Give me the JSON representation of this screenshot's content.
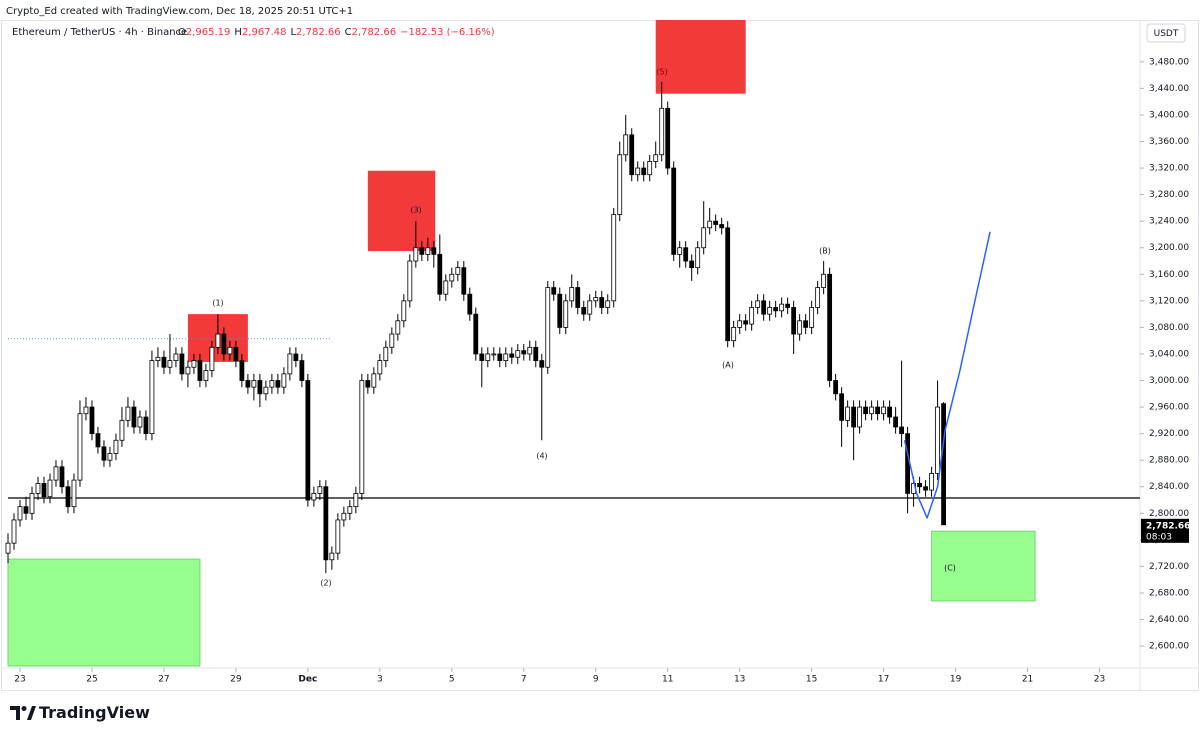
{
  "chart_data": {
    "type": "candlestick",
    "credit": "Crypto_Ed created with TradingView.com, Dec 18, 2025 20:51 UTC+1",
    "title": "Ethereum / TetherUS · 4h · Binance",
    "legend_values": [
      "O",
      "2,965.19",
      "H",
      "2,967.48",
      "L",
      "2,782.66",
      "C",
      "2,782.66",
      "−182.53 (−6.16%)"
    ],
    "currency": "USDT",
    "brand": "TradingView",
    "last_price_label": "2,782.66",
    "countdown": "08:03",
    "xlim": [
      -8,
      747
    ],
    "ylim": [
      2567,
      3543
    ],
    "xticks": [
      {
        "value": 0,
        "label": "23"
      },
      {
        "value": 48,
        "label": "25"
      },
      {
        "value": 96,
        "label": "27"
      },
      {
        "value": 144,
        "label": "29"
      },
      {
        "value": 192,
        "label": "Dec"
      },
      {
        "value": 240,
        "label": "3"
      },
      {
        "value": 288,
        "label": "5"
      },
      {
        "value": 336,
        "label": "7"
      },
      {
        "value": 384,
        "label": "9"
      },
      {
        "value": 432,
        "label": "11"
      },
      {
        "value": 480,
        "label": "13"
      },
      {
        "value": 528,
        "label": "15"
      },
      {
        "value": 576,
        "label": "17"
      },
      {
        "value": 624,
        "label": "19"
      },
      {
        "value": 672,
        "label": "21"
      },
      {
        "value": 720,
        "label": "23"
      }
    ],
    "yticks": [
      {
        "value": 2600,
        "label": "2,600.00"
      },
      {
        "value": 2640,
        "label": "2,640.00"
      },
      {
        "value": 2680,
        "label": "2,680.00"
      },
      {
        "value": 2720,
        "label": "2,720.00"
      },
      {
        "value": 2760,
        "label": "2,760.00"
      },
      {
        "value": 2800,
        "label": "2,800.00"
      },
      {
        "value": 2840,
        "label": "2,840.00"
      },
      {
        "value": 2880,
        "label": "2,880.00"
      },
      {
        "value": 2920,
        "label": "2,920.00"
      },
      {
        "value": 2960,
        "label": "2,960.00"
      },
      {
        "value": 3000,
        "label": "3,000.00"
      },
      {
        "value": 3040,
        "label": "3,040.00"
      },
      {
        "value": 3080,
        "label": "3,080.00"
      },
      {
        "value": 3120,
        "label": "3,120.00"
      },
      {
        "value": 3160,
        "label": "3,160.00"
      },
      {
        "value": 3200,
        "label": "3,200.00"
      },
      {
        "value": 3240,
        "label": "3,240.00"
      },
      {
        "value": 3280,
        "label": "3,280.00"
      },
      {
        "value": 3320,
        "label": "3,320.00"
      },
      {
        "value": 3360,
        "label": "3,360.00"
      },
      {
        "value": 3400,
        "label": "3,400.00"
      },
      {
        "value": 3440,
        "label": "3,440.00"
      },
      {
        "value": 3480,
        "label": "3,480.00"
      }
    ],
    "x": [
      -8,
      -4,
      0,
      4,
      8,
      12,
      16,
      20,
      24,
      28,
      32,
      36,
      40,
      44,
      48,
      52,
      56,
      60,
      64,
      68,
      72,
      76,
      80,
      84,
      88,
      92,
      96,
      100,
      104,
      108,
      112,
      116,
      120,
      124,
      128,
      132,
      136,
      140,
      144,
      148,
      152,
      156,
      160,
      164,
      168,
      172,
      176,
      180,
      184,
      188,
      192,
      196,
      200,
      204,
      208,
      212,
      216,
      220,
      224,
      228,
      232,
      236,
      240,
      244,
      248,
      252,
      256,
      260,
      264,
      268,
      272,
      276,
      280,
      284,
      288,
      292,
      296,
      300,
      304,
      308,
      312,
      316,
      320,
      324,
      328,
      332,
      336,
      340,
      344,
      348,
      352,
      356,
      360,
      364,
      368,
      372,
      376,
      380,
      384,
      388,
      392,
      396,
      400,
      404,
      408,
      412,
      416,
      420,
      424,
      428,
      432,
      436,
      440,
      444,
      448,
      452,
      456,
      460,
      464,
      468,
      472,
      476,
      480,
      484,
      488,
      492,
      496,
      500,
      504,
      508,
      512,
      516,
      520,
      524,
      528,
      532,
      536,
      540,
      544,
      548,
      552,
      556,
      560,
      564,
      568,
      572,
      576,
      580,
      584,
      588,
      592,
      596,
      600,
      604,
      608,
      612,
      616
    ],
    "ohlc": [
      [
        2740,
        2770,
        2725,
        2755
      ],
      [
        2755,
        2800,
        2745,
        2790
      ],
      [
        2790,
        2820,
        2780,
        2810
      ],
      [
        2810,
        2825,
        2790,
        2800
      ],
      [
        2800,
        2840,
        2790,
        2830
      ],
      [
        2830,
        2855,
        2820,
        2845
      ],
      [
        2845,
        2855,
        2815,
        2825
      ],
      [
        2825,
        2860,
        2815,
        2850
      ],
      [
        2850,
        2880,
        2840,
        2870
      ],
      [
        2870,
        2880,
        2830,
        2840
      ],
      [
        2840,
        2850,
        2800,
        2810
      ],
      [
        2810,
        2860,
        2800,
        2850
      ],
      [
        2850,
        2970,
        2840,
        2950
      ],
      [
        2950,
        2975,
        2940,
        2960
      ],
      [
        2960,
        2970,
        2910,
        2920
      ],
      [
        2920,
        2930,
        2890,
        2900
      ],
      [
        2900,
        2910,
        2870,
        2880
      ],
      [
        2880,
        2900,
        2870,
        2890
      ],
      [
        2890,
        2920,
        2880,
        2910
      ],
      [
        2910,
        2960,
        2900,
        2940
      ],
      [
        2940,
        2975,
        2930,
        2960
      ],
      [
        2960,
        2970,
        2920,
        2930
      ],
      [
        2930,
        2955,
        2920,
        2945
      ],
      [
        2945,
        2955,
        2910,
        2920
      ],
      [
        2920,
        3045,
        2910,
        3030
      ],
      [
        3030,
        3050,
        3020,
        3035
      ],
      [
        3035,
        3045,
        3010,
        3020
      ],
      [
        3020,
        3070,
        3010,
        3030
      ],
      [
        3030,
        3050,
        3020,
        3040
      ],
      [
        3040,
        3050,
        3000,
        3010
      ],
      [
        3010,
        3030,
        2990,
        3020
      ],
      [
        3020,
        3040,
        3010,
        3030
      ],
      [
        3030,
        3040,
        2990,
        3000
      ],
      [
        3000,
        3025,
        2990,
        3015
      ],
      [
        3015,
        3060,
        3005,
        3050
      ],
      [
        3050,
        3100,
        3040,
        3070
      ],
      [
        3070,
        3080,
        3030,
        3040
      ],
      [
        3040,
        3060,
        3030,
        3050
      ],
      [
        3050,
        3060,
        3020,
        3030
      ],
      [
        3030,
        3040,
        2990,
        3000
      ],
      [
        3000,
        3010,
        2980,
        2990
      ],
      [
        2990,
        3010,
        2970,
        3000
      ],
      [
        3000,
        3010,
        2960,
        2980
      ],
      [
        2980,
        3000,
        2970,
        2990
      ],
      [
        2990,
        3010,
        2980,
        3000
      ],
      [
        3000,
        3010,
        2980,
        2990
      ],
      [
        2990,
        3020,
        2980,
        3010
      ],
      [
        3010,
        3050,
        3000,
        3040
      ],
      [
        3040,
        3050,
        3020,
        3030
      ],
      [
        3030,
        3040,
        2990,
        3000
      ],
      [
        3000,
        3010,
        2810,
        2820
      ],
      [
        2820,
        2840,
        2810,
        2830
      ],
      [
        2830,
        2850,
        2820,
        2840
      ],
      [
        2840,
        2850,
        2710,
        2730
      ],
      [
        2730,
        2750,
        2715,
        2740
      ],
      [
        2740,
        2800,
        2730,
        2790
      ],
      [
        2790,
        2810,
        2780,
        2800
      ],
      [
        2800,
        2820,
        2790,
        2810
      ],
      [
        2810,
        2840,
        2800,
        2830
      ],
      [
        2830,
        3010,
        2820,
        3000
      ],
      [
        3000,
        3010,
        2980,
        2990
      ],
      [
        2990,
        3020,
        2980,
        3010
      ],
      [
        3010,
        3040,
        3000,
        3030
      ],
      [
        3030,
        3060,
        3020,
        3050
      ],
      [
        3050,
        3080,
        3040,
        3070
      ],
      [
        3070,
        3100,
        3060,
        3090
      ],
      [
        3090,
        3130,
        3080,
        3120
      ],
      [
        3120,
        3190,
        3110,
        3180
      ],
      [
        3180,
        3240,
        3170,
        3200
      ],
      [
        3200,
        3210,
        3180,
        3190
      ],
      [
        3190,
        3215,
        3180,
        3200
      ],
      [
        3200,
        3210,
        3170,
        3190
      ],
      [
        3190,
        3220,
        3120,
        3130
      ],
      [
        3130,
        3160,
        3120,
        3150
      ],
      [
        3150,
        3170,
        3140,
        3160
      ],
      [
        3160,
        3180,
        3150,
        3170
      ],
      [
        3170,
        3180,
        3120,
        3130
      ],
      [
        3130,
        3140,
        3090,
        3100
      ],
      [
        3100,
        3110,
        3030,
        3040
      ],
      [
        3040,
        3050,
        2990,
        3030
      ],
      [
        3030,
        3050,
        3020,
        3040
      ],
      [
        3040,
        3050,
        3030,
        3040
      ],
      [
        3040,
        3050,
        3020,
        3030
      ],
      [
        3030,
        3050,
        3020,
        3040
      ],
      [
        3040,
        3050,
        3025,
        3035
      ],
      [
        3035,
        3055,
        3025,
        3045
      ],
      [
        3045,
        3055,
        3030,
        3040
      ],
      [
        3040,
        3060,
        3030,
        3050
      ],
      [
        3050,
        3060,
        3020,
        3030
      ],
      [
        3030,
        3040,
        2910,
        3020
      ],
      [
        3020,
        3150,
        3010,
        3140
      ],
      [
        3140,
        3150,
        3120,
        3130
      ],
      [
        3130,
        3140,
        3070,
        3080
      ],
      [
        3080,
        3130,
        3070,
        3120
      ],
      [
        3120,
        3160,
        3110,
        3140
      ],
      [
        3140,
        3150,
        3100,
        3110
      ],
      [
        3110,
        3120,
        3090,
        3100
      ],
      [
        3100,
        3130,
        3090,
        3120
      ],
      [
        3120,
        3135,
        3110,
        3125
      ],
      [
        3125,
        3135,
        3100,
        3110
      ],
      [
        3110,
        3130,
        3100,
        3120
      ],
      [
        3120,
        3260,
        3110,
        3250
      ],
      [
        3250,
        3360,
        3240,
        3340
      ],
      [
        3340,
        3400,
        3330,
        3370
      ],
      [
        3370,
        3380,
        3300,
        3310
      ],
      [
        3310,
        3330,
        3300,
        3320
      ],
      [
        3320,
        3330,
        3300,
        3310
      ],
      [
        3310,
        3340,
        3300,
        3330
      ],
      [
        3330,
        3360,
        3320,
        3340
      ],
      [
        3340,
        3450,
        3330,
        3410
      ],
      [
        3410,
        3420,
        3310,
        3320
      ],
      [
        3320,
        3330,
        3180,
        3190
      ],
      [
        3190,
        3210,
        3170,
        3200
      ],
      [
        3200,
        3210,
        3170,
        3180
      ],
      [
        3180,
        3190,
        3150,
        3170
      ],
      [
        3170,
        3210,
        3160,
        3200
      ],
      [
        3200,
        3270,
        3190,
        3230
      ],
      [
        3230,
        3260,
        3220,
        3240
      ],
      [
        3240,
        3250,
        3225,
        3235
      ],
      [
        3235,
        3245,
        3220,
        3230
      ],
      [
        3230,
        3240,
        3050,
        3060
      ],
      [
        3060,
        3090,
        3050,
        3080
      ],
      [
        3080,
        3100,
        3070,
        3090
      ],
      [
        3090,
        3100,
        3075,
        3085
      ],
      [
        3085,
        3120,
        3075,
        3110
      ],
      [
        3110,
        3130,
        3100,
        3120
      ],
      [
        3120,
        3130,
        3090,
        3100
      ],
      [
        3100,
        3120,
        3090,
        3110
      ],
      [
        3110,
        3120,
        3095,
        3105
      ],
      [
        3105,
        3125,
        3095,
        3115
      ],
      [
        3115,
        3125,
        3100,
        3110
      ],
      [
        3110,
        3120,
        3040,
        3070
      ],
      [
        3070,
        3100,
        3060,
        3090
      ],
      [
        3090,
        3100,
        3070,
        3080
      ],
      [
        3080,
        3120,
        3070,
        3110
      ],
      [
        3110,
        3150,
        3100,
        3140
      ],
      [
        3140,
        3180,
        3130,
        3160
      ],
      [
        3160,
        3170,
        2990,
        3000
      ],
      [
        3000,
        3010,
        2970,
        2980
      ],
      [
        2980,
        2990,
        2900,
        2940
      ],
      [
        2940,
        2970,
        2930,
        2960
      ],
      [
        2960,
        2970,
        2880,
        2930
      ],
      [
        2930,
        2970,
        2920,
        2960
      ],
      [
        2960,
        2970,
        2940,
        2950
      ],
      [
        2950,
        2970,
        2940,
        2960
      ],
      [
        2960,
        2970,
        2940,
        2950
      ],
      [
        2950,
        2970,
        2940,
        2960
      ],
      [
        2960,
        2970,
        2935,
        2945
      ],
      [
        2945,
        2960,
        2920,
        2930
      ],
      [
        2930,
        3030,
        2900,
        2920
      ],
      [
        2920,
        2930,
        2800,
        2830
      ],
      [
        2830,
        2855,
        2810,
        2845
      ],
      [
        2845,
        2855,
        2830,
        2840
      ],
      [
        2840,
        2850,
        2825,
        2835
      ],
      [
        2835,
        2870,
        2825,
        2860
      ],
      [
        2860,
        3000,
        2850,
        2960
      ],
      [
        2965.19,
        2967.48,
        2782.66,
        2782.66
      ]
    ],
    "zones": [
      {
        "x": [
          112,
          152
        ],
        "values": [
          3028,
          3100
        ],
        "color": "#f23a3a"
      },
      {
        "x": [
          232,
          277
        ],
        "values": [
          3195,
          3316
        ],
        "color": "#f23a3a"
      },
      {
        "x": [
          424,
          484
        ],
        "values": [
          3432,
          3543
        ],
        "color": "#f23a3a"
      },
      {
        "x": [
          -8,
          120
        ],
        "values": [
          2570,
          2731
        ],
        "color": "#98fd8f"
      },
      {
        "x": [
          608,
          677
        ],
        "values": [
          2668,
          2773
        ],
        "color": "#98fd8f"
      }
    ],
    "hline": {
      "value": 2823,
      "color": "#000000"
    },
    "dotted_line": {
      "x": [
        -8,
        208
      ],
      "value": 3063,
      "color": "#5b8bd6"
    },
    "projection": {
      "x": [
        590,
        598,
        605,
        612,
        617,
        627,
        637,
        647
      ],
      "values": [
        2910,
        2830,
        2793,
        2840,
        2925,
        3016,
        3121,
        3224
      ],
      "color": "#2962ff"
    },
    "annotations": [
      "(1)",
      "(2)",
      "(3)",
      "(4)",
      "(5)",
      "(A)",
      "(B)",
      "(C)"
    ]
  }
}
